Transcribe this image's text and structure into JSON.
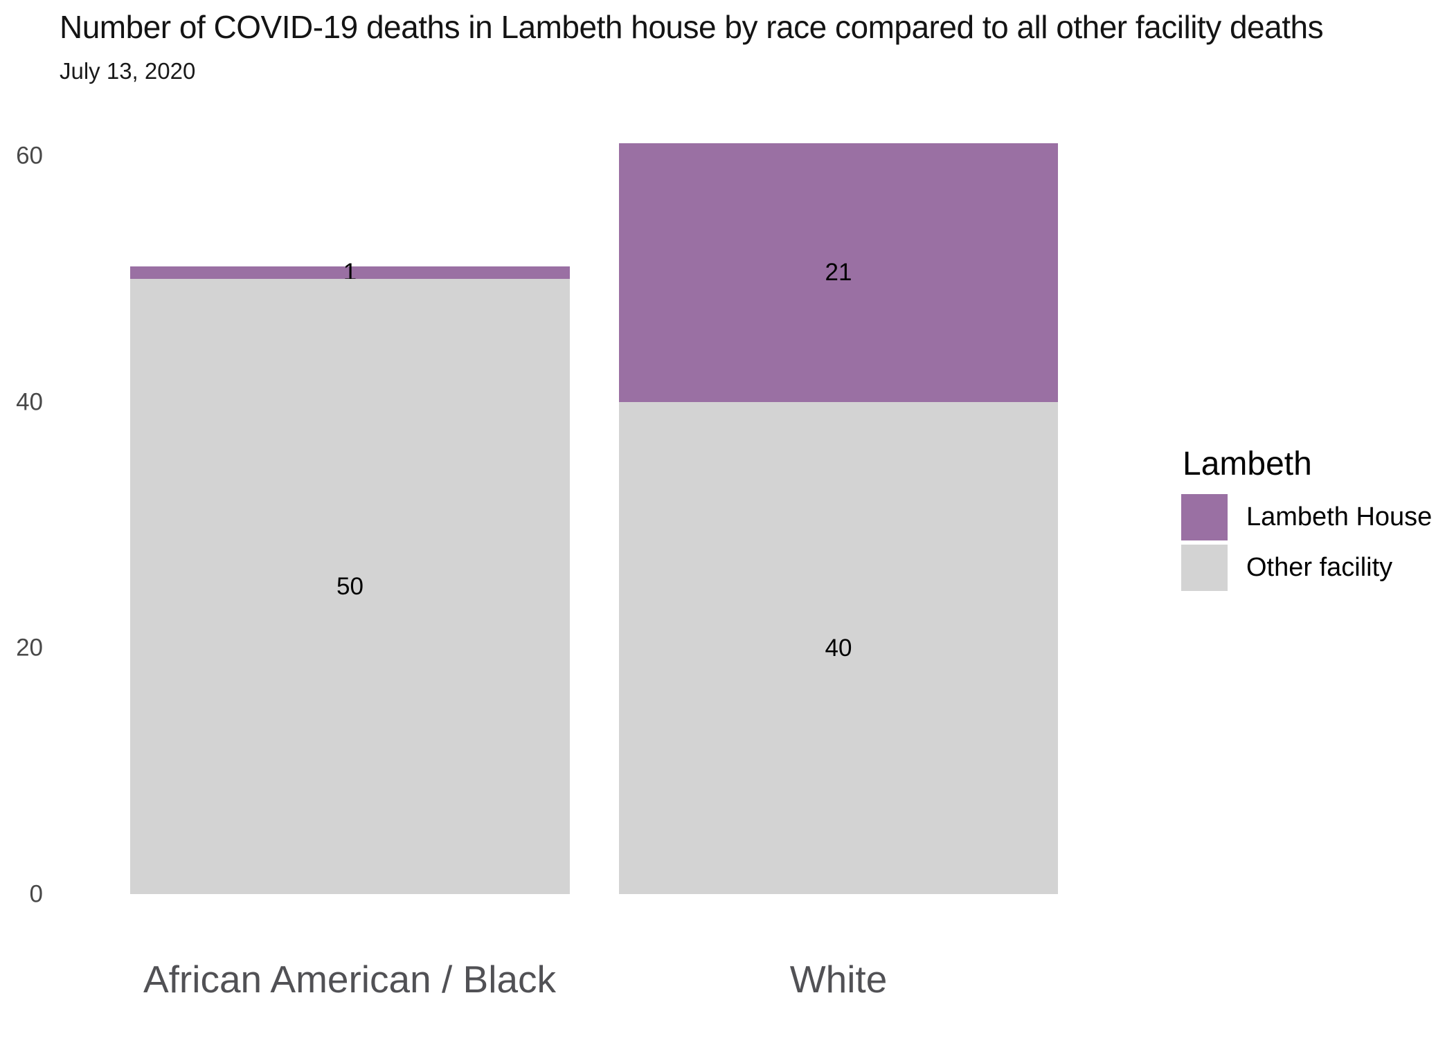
{
  "header": {
    "title": "Number of COVID-19 deaths in Lambeth house by race compared to all other facility deaths",
    "subtitle": "July 13, 2020"
  },
  "colors": {
    "lambeth_house": "#9a70a3",
    "other_facility": "#d3d3d3",
    "axis_text": "#494949",
    "category_text": "#515155",
    "background": "#ffffff"
  },
  "y_axis": {
    "ticks": [
      "60",
      "40",
      "20",
      "0"
    ]
  },
  "legend": {
    "title": "Lambeth",
    "items": [
      {
        "label": "Lambeth House",
        "color": "#9a70a3"
      },
      {
        "label": "Other facility",
        "color": "#d3d3d3"
      }
    ]
  },
  "chart_data": {
    "type": "bar",
    "stacked": true,
    "title": "Number of COVID-19 deaths in Lambeth house by race compared to all other facility deaths",
    "subtitle": "July 13, 2020",
    "categories": [
      "African American / Black",
      "White"
    ],
    "series": [
      {
        "name": "Lambeth House",
        "color": "#9a70a3",
        "values": [
          1,
          21
        ]
      },
      {
        "name": "Other facility",
        "color": "#d3d3d3",
        "values": [
          50,
          40
        ]
      }
    ],
    "totals": [
      51,
      61
    ],
    "xlabel": "",
    "ylabel": "",
    "ylim": [
      0,
      61
    ],
    "yticks": [
      0,
      20,
      40,
      60
    ],
    "grid": false,
    "value_labels": true,
    "legend_title": "Lambeth",
    "legend_position": "right"
  }
}
